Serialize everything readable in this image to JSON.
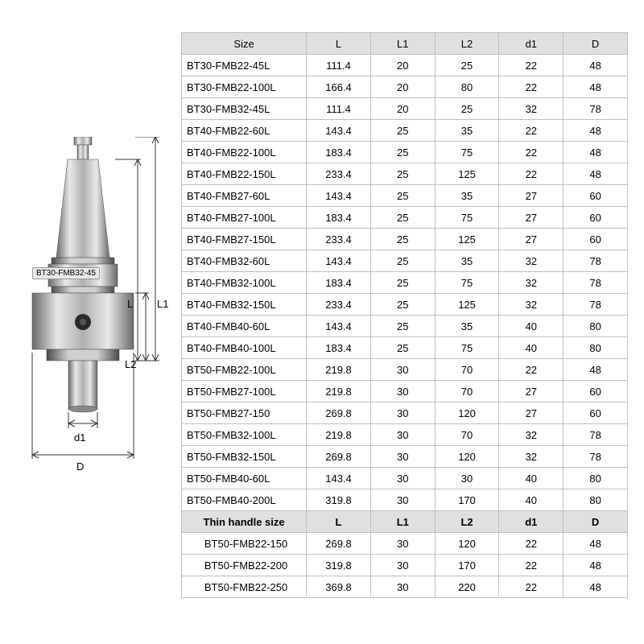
{
  "diagram": {
    "part_label": "BT30-FMB32-45",
    "dims": {
      "L": "L",
      "L1": "L1",
      "L2": "L2",
      "d1": "d1",
      "D": "D"
    },
    "colors": {
      "metal_light": "#dcdcdc",
      "metal_mid": "#b0b0b0",
      "metal_dark": "#6a6a6a",
      "line": "#333333",
      "background": "#ffffff"
    }
  },
  "table": {
    "header_bg": "#e0e0e0",
    "border_color": "#c0c0c0",
    "columns": [
      "Size",
      "L",
      "L1",
      "L2",
      "d1",
      "D"
    ],
    "rows": [
      [
        "BT30-FMB22-45L",
        "111.4",
        "20",
        "25",
        "22",
        "48"
      ],
      [
        "BT30-FMB22-100L",
        "166.4",
        "20",
        "80",
        "22",
        "48"
      ],
      [
        "BT30-FMB32-45L",
        "111.4",
        "20",
        "25",
        "32",
        "78"
      ],
      [
        "BT40-FMB22-60L",
        "143.4",
        "25",
        "35",
        "22",
        "48"
      ],
      [
        "BT40-FMB22-100L",
        "183.4",
        "25",
        "75",
        "22",
        "48"
      ],
      [
        "BT40-FMB22-150L",
        "233.4",
        "25",
        "125",
        "22",
        "48"
      ],
      [
        "BT40-FMB27-60L",
        "143.4",
        "25",
        "35",
        "27",
        "60"
      ],
      [
        "BT40-FMB27-100L",
        "183.4",
        "25",
        "75",
        "27",
        "60"
      ],
      [
        "BT40-FMB27-150L",
        "233.4",
        "25",
        "125",
        "27",
        "60"
      ],
      [
        "BT40-FMB32-60L",
        "143.4",
        "25",
        "35",
        "32",
        "78"
      ],
      [
        "BT40-FMB32-100L",
        "183.4",
        "25",
        "75",
        "32",
        "78"
      ],
      [
        "BT40-FMB32-150L",
        "233.4",
        "25",
        "125",
        "32",
        "78"
      ],
      [
        "BT40-FMB40-60L",
        "143.4",
        "25",
        "35",
        "40",
        "80"
      ],
      [
        "BT40-FMB40-100L",
        "183.4",
        "25",
        "75",
        "40",
        "80"
      ],
      [
        "BT50-FMB22-100L",
        "219.8",
        "30",
        "70",
        "22",
        "48"
      ],
      [
        "BT50-FMB27-100L",
        "219.8",
        "30",
        "70",
        "27",
        "60"
      ],
      [
        "BT50-FMB27-150",
        "269.8",
        "30",
        "120",
        "27",
        "60"
      ],
      [
        "BT50-FMB32-100L",
        "219.8",
        "30",
        "70",
        "32",
        "78"
      ],
      [
        "BT50-FMB32-150L",
        "269.8",
        "30",
        "120",
        "32",
        "78"
      ],
      [
        "BT50-FMB40-60L",
        "143.4",
        "30",
        "30",
        "40",
        "80"
      ],
      [
        "BT50-FMB40-200L",
        "319.8",
        "30",
        "170",
        "40",
        "80"
      ]
    ],
    "subheader": [
      "Thin handle size",
      "L",
      "L1",
      "L2",
      "d1",
      "D"
    ],
    "rows2": [
      [
        "BT50-FMB22-150",
        "269.8",
        "30",
        "120",
        "22",
        "48"
      ],
      [
        "BT50-FMB22-200",
        "319.8",
        "30",
        "170",
        "22",
        "48"
      ],
      [
        "BT50-FMB22-250",
        "369.8",
        "30",
        "220",
        "22",
        "48"
      ]
    ]
  }
}
